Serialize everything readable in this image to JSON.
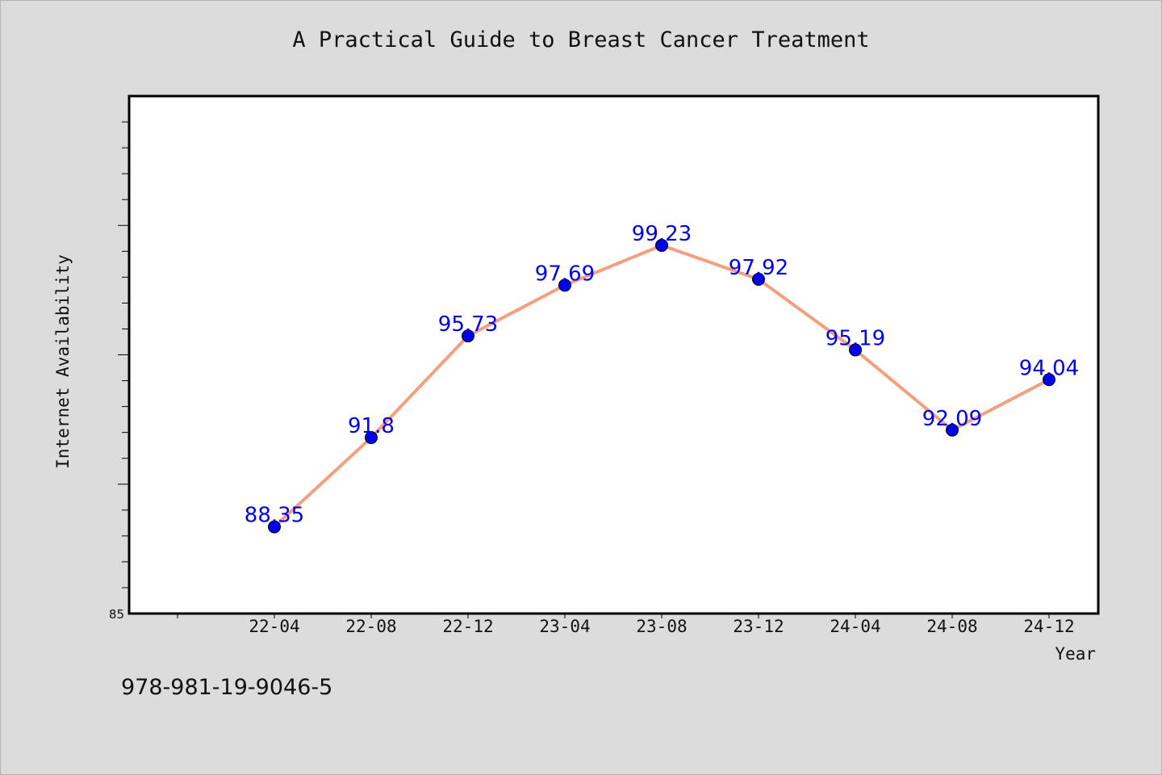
{
  "chart_data": {
    "type": "line",
    "title": "A Practical Guide to Breast Cancer Treatment",
    "xlabel": "Year",
    "ylabel": "Internet Availability",
    "categories": [
      "22-04",
      "22-08",
      "22-12",
      "23-04",
      "23-08",
      "23-12",
      "24-04",
      "24-08",
      "24-12"
    ],
    "series": [
      {
        "values": [
          88.35,
          91.8,
          95.73,
          97.69,
          99.23,
          97.92,
          95.19,
          92.09,
          94.04
        ]
      }
    ],
    "data_labels": [
      "88.35",
      "91.8",
      "95.73",
      "97.69",
      "99.23",
      "97.92",
      "95.19",
      "92.09",
      "94.04"
    ],
    "y_tick_labels": [
      "85"
    ],
    "ylim": [
      85,
      105
    ],
    "grid": false,
    "colors": {
      "line": "#f4a07e",
      "marker": "#0000ee",
      "label": "#0000ee"
    }
  },
  "footer": {
    "code": "978-981-19-9046-5"
  }
}
